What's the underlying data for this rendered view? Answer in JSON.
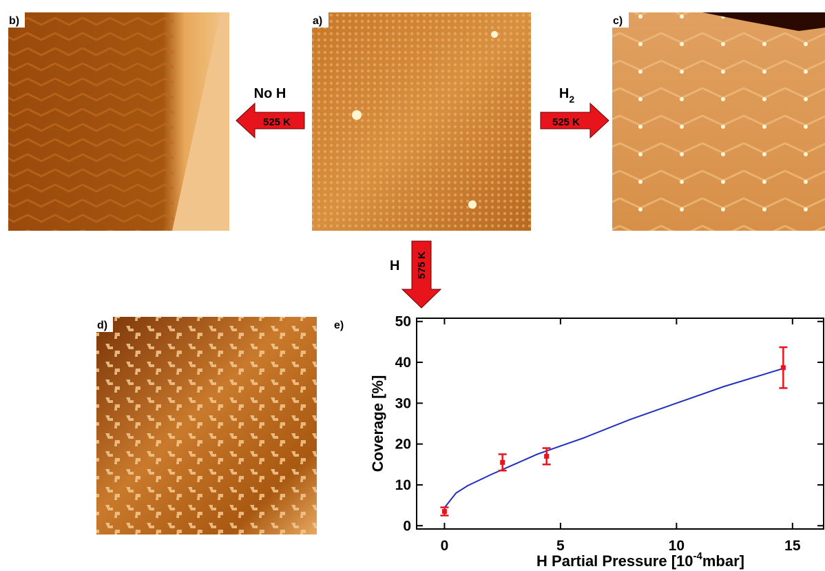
{
  "panels": {
    "a": "a)",
    "b": "b)",
    "c": "c)",
    "d": "d)",
    "e": "e)"
  },
  "arrows": {
    "left": {
      "top": "No H",
      "inner": "525 K"
    },
    "right": {
      "top": "H",
      "sub": "2",
      "inner": "525 K"
    },
    "down": {
      "side": "H",
      "inner": "575 K"
    }
  },
  "chart_data": {
    "type": "scatter",
    "x_label": {
      "text": "H Partial Pressure [10",
      "sup": "-4",
      "tail": "mbar]"
    },
    "y_label": "Coverage [%]",
    "x": [
      0,
      2.5,
      4.4,
      14.6
    ],
    "values": [
      3.5,
      15.5,
      17,
      38.7
    ],
    "errors": [
      1,
      2,
      2,
      5
    ],
    "color": "#e8141c",
    "fit": {
      "x": [
        0,
        0.5,
        1,
        2,
        3,
        4,
        5,
        6,
        8,
        10,
        12,
        14.6
      ],
      "values": [
        4.4,
        8,
        9.8,
        12.5,
        15,
        17.5,
        19.5,
        21.5,
        26,
        30,
        34,
        38.5
      ],
      "color": "#1f2fbf"
    },
    "xlim": [
      -1.2,
      16.4
    ],
    "ylim": [
      -0.8,
      50.8
    ],
    "xticks": [
      0,
      5,
      10,
      15
    ],
    "yticks": [
      0,
      10,
      20,
      30,
      40,
      50
    ]
  }
}
